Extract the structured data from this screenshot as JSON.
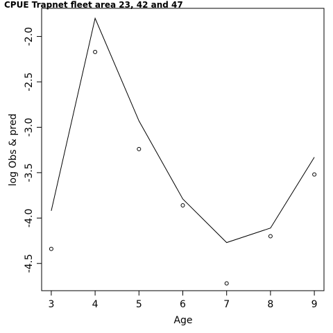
{
  "chart_data": {
    "type": "line",
    "title": "CPUE Trapnet fleet area 23, 42 and 47",
    "xlabel": "Age",
    "ylabel": "log Obs & pred",
    "xlim": [
      2.78,
      9.22
    ],
    "ylim": [
      -4.8,
      -1.69
    ],
    "x_ticks": [
      3,
      4,
      5,
      6,
      7,
      8,
      9
    ],
    "y_ticks": [
      -4.5,
      -4.0,
      -3.5,
      -3.0,
      -2.5,
      -2.0
    ],
    "x_tick_labels": [
      "3",
      "4",
      "5",
      "6",
      "7",
      "8",
      "9"
    ],
    "y_tick_labels": [
      "-4.5",
      "-4.0",
      "-3.5",
      "-3.0",
      "-2.5",
      "-2.0"
    ],
    "grid": false,
    "legend": "none",
    "series": [
      {
        "style": "line",
        "color": "#000000",
        "x": [
          3,
          4,
          5,
          6,
          7,
          8,
          9
        ],
        "y": [
          -3.92,
          -1.8,
          -2.93,
          -3.79,
          -4.27,
          -4.11,
          -3.33
        ]
      },
      {
        "style": "points",
        "marker": "open-circle",
        "color": "#000000",
        "x": [
          3,
          4,
          5,
          6,
          7,
          8,
          9
        ],
        "y": [
          -4.34,
          -2.17,
          -3.24,
          -3.86,
          -4.72,
          -4.2,
          -3.52
        ]
      }
    ]
  }
}
